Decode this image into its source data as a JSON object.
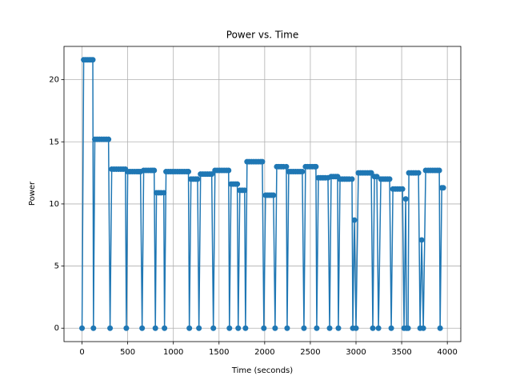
{
  "chart_data": {
    "type": "line",
    "title": "Power vs. Time",
    "x_label": "Time (seconds)",
    "y_label": "Power",
    "color": "#1f77b4",
    "grid": true,
    "marker": "o",
    "xlim": [
      -197.5,
      4147.5
    ],
    "ylim": [
      -1.08,
      22.68
    ],
    "xticks": [
      0,
      500,
      1000,
      1500,
      2000,
      2500,
      3000,
      3500,
      4000
    ],
    "yticks": [
      0,
      5,
      10,
      15,
      20
    ],
    "x": [
      0,
      18,
      38,
      58,
      78,
      98,
      118,
      125,
      140,
      165,
      190,
      215,
      240,
      265,
      290,
      307,
      325,
      350,
      375,
      400,
      425,
      450,
      475,
      485,
      500,
      525,
      550,
      575,
      600,
      620,
      640,
      658,
      675,
      700,
      725,
      750,
      770,
      790,
      803,
      815,
      840,
      865,
      895,
      903,
      920,
      945,
      970,
      995,
      1020,
      1045,
      1070,
      1095,
      1120,
      1145,
      1165,
      1175,
      1193,
      1218,
      1243,
      1265,
      1280,
      1298,
      1323,
      1348,
      1373,
      1398,
      1420,
      1438,
      1456,
      1481,
      1506,
      1531,
      1556,
      1581,
      1605,
      1614,
      1632,
      1655,
      1678,
      1700,
      1710,
      1728,
      1754,
      1780,
      1790,
      1807,
      1830,
      1855,
      1880,
      1905,
      1930,
      1955,
      1974,
      1991,
      2009,
      2030,
      2052,
      2074,
      2096,
      2114,
      2132,
      2155,
      2180,
      2205,
      2237,
      2246,
      2263,
      2288,
      2313,
      2338,
      2363,
      2388,
      2412,
      2430,
      2447,
      2470,
      2495,
      2520,
      2545,
      2561,
      2570,
      2588,
      2613,
      2638,
      2663,
      2693,
      2711,
      2728,
      2752,
      2776,
      2798,
      2807,
      2825,
      2850,
      2875,
      2900,
      2925,
      2956,
      2965,
      2982,
      3000,
      3026,
      3050,
      3075,
      3100,
      3125,
      3150,
      3167,
      3184,
      3202,
      3228,
      3246,
      3272,
      3296,
      3320,
      3344,
      3368,
      3386,
      3404,
      3430,
      3455,
      3480,
      3509,
      3526,
      3544,
      3553,
      3570,
      3579,
      3605,
      3630,
      3655,
      3684,
      3702,
      3719,
      3737,
      3763,
      3790,
      3815,
      3840,
      3865,
      3890,
      3912,
      3921,
      3939,
      3956
    ],
    "values": [
      0,
      21.6,
      21.6,
      21.6,
      21.6,
      21.6,
      21.6,
      0,
      15.2,
      15.2,
      15.2,
      15.2,
      15.2,
      15.2,
      15.2,
      0,
      12.8,
      12.8,
      12.8,
      12.8,
      12.8,
      12.8,
      12.8,
      0,
      12.6,
      12.6,
      12.6,
      12.6,
      12.6,
      12.6,
      12.6,
      0,
      12.7,
      12.7,
      12.7,
      12.7,
      12.7,
      12.7,
      0,
      10.9,
      10.9,
      10.9,
      10.9,
      0,
      12.6,
      12.6,
      12.6,
      12.6,
      12.6,
      12.6,
      12.6,
      12.6,
      12.6,
      12.6,
      12.6,
      0,
      12.0,
      12.0,
      12.0,
      12.0,
      0,
      12.4,
      12.4,
      12.4,
      12.4,
      12.4,
      12.4,
      0,
      12.7,
      12.7,
      12.7,
      12.7,
      12.7,
      12.7,
      12.7,
      0,
      11.6,
      11.6,
      11.6,
      11.6,
      0,
      11.1,
      11.1,
      11.1,
      0,
      13.4,
      13.4,
      13.4,
      13.4,
      13.4,
      13.4,
      13.4,
      13.4,
      0,
      10.7,
      10.7,
      10.7,
      10.7,
      10.7,
      0,
      13.0,
      13.0,
      13.0,
      13.0,
      13.0,
      0,
      12.6,
      12.6,
      12.6,
      12.6,
      12.6,
      12.6,
      12.6,
      0,
      13.0,
      13.0,
      13.0,
      13.0,
      13.0,
      13.0,
      0,
      12.1,
      12.1,
      12.1,
      12.1,
      12.1,
      0,
      12.2,
      12.2,
      12.2,
      12.2,
      0,
      12.0,
      12.0,
      12.0,
      12.0,
      12.0,
      12.0,
      0,
      8.7,
      0,
      12.5,
      12.5,
      12.5,
      12.5,
      12.5,
      12.5,
      12.5,
      0,
      12.2,
      12.2,
      0,
      12.0,
      12.0,
      12.0,
      12.0,
      12.0,
      0,
      11.2,
      11.2,
      11.2,
      11.2,
      11.2,
      0,
      10.4,
      0,
      0,
      12.5,
      12.5,
      12.5,
      12.5,
      12.5,
      0,
      7.1,
      0,
      12.7,
      12.7,
      12.7,
      12.7,
      12.7,
      12.7,
      12.7,
      0,
      11.3,
      11.3
    ]
  }
}
